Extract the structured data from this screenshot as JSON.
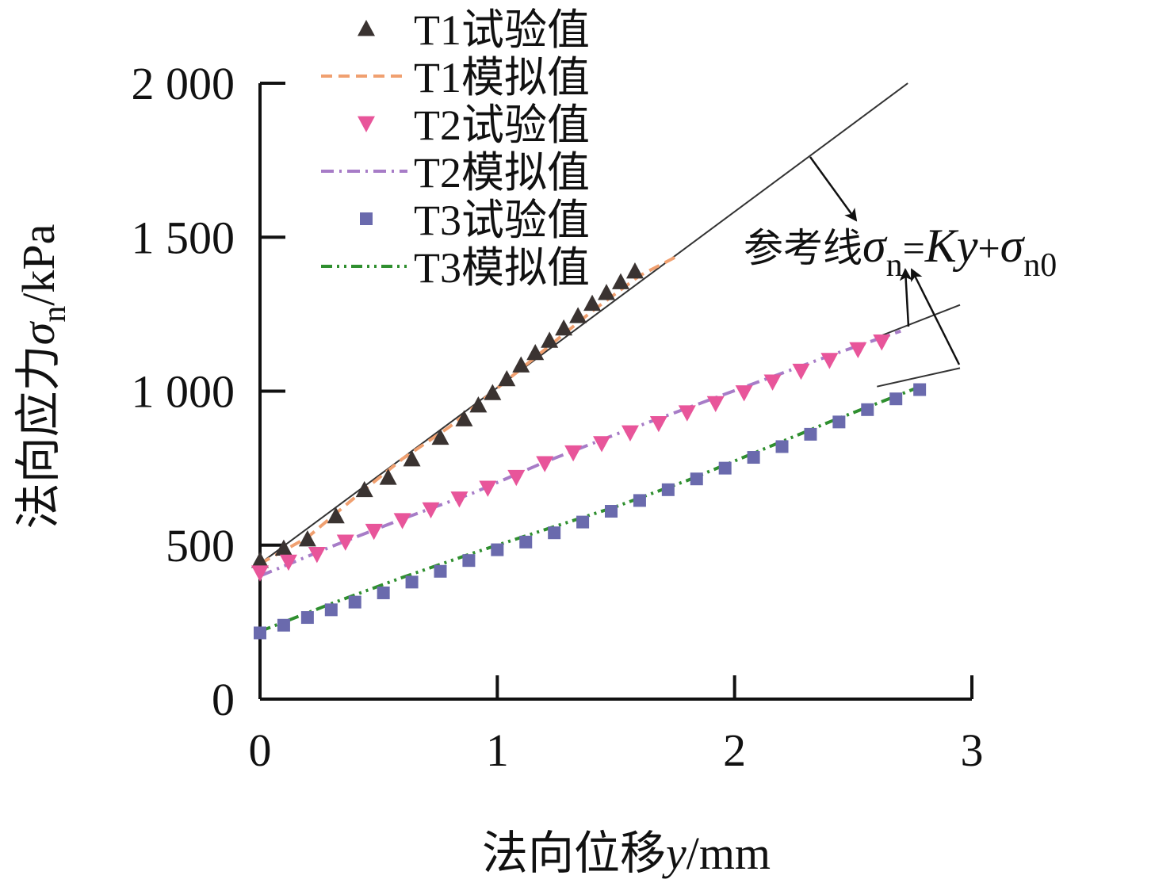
{
  "chart_data": {
    "type": "scatter",
    "title": "",
    "xlabel": {
      "prefix": "法向位移",
      "var": "y",
      "unit": "/mm"
    },
    "ylabel": {
      "prefix": "法向应力",
      "var": "σ",
      "sub": "n",
      "unit": "/kPa"
    },
    "xlim": [
      0,
      3
    ],
    "ylim": [
      0,
      2000
    ],
    "x_ticks": [
      0,
      1,
      2,
      3
    ],
    "x_tick_labels": [
      "0",
      "1",
      "2",
      "3"
    ],
    "y_ticks": [
      0,
      500,
      1000,
      1500,
      2000
    ],
    "y_tick_labels": [
      "0",
      "500",
      "1 000",
      "1 500",
      "2 000"
    ],
    "grid": false,
    "legend_position": "top-center",
    "legend": [
      {
        "label": "T1试验值",
        "marker": "triangle-up",
        "color": "#3a3331"
      },
      {
        "label": "T1模拟值",
        "line": "dashed",
        "color": "#f0a070"
      },
      {
        "label": "T2试验值",
        "marker": "triangle-down",
        "color": "#e8559a"
      },
      {
        "label": "T2模拟值",
        "line": "dashdot",
        "color": "#a77cc7"
      },
      {
        "label": "T3试验值",
        "marker": "square",
        "color": "#6a6aad"
      },
      {
        "label": "T3模拟值",
        "line": "dashdotdot",
        "color": "#2f8f2f"
      }
    ],
    "series": [
      {
        "name": "T1试验值",
        "kind": "markers",
        "marker": "triangle-up",
        "color": "#3a3331",
        "x": [
          0.0,
          0.1,
          0.2,
          0.32,
          0.44,
          0.54,
          0.64,
          0.76,
          0.86,
          0.92,
          0.98,
          1.04,
          1.1,
          1.16,
          1.22,
          1.28,
          1.34,
          1.4,
          1.46,
          1.52,
          1.58
        ],
        "y": [
          450,
          490,
          520,
          595,
          680,
          720,
          780,
          850,
          910,
          955,
          995,
          1040,
          1085,
          1125,
          1165,
          1205,
          1245,
          1285,
          1320,
          1355,
          1390
        ]
      },
      {
        "name": "T1模拟值",
        "kind": "line",
        "dash": "dashed",
        "color": "#f0a070",
        "x": [
          0.0,
          0.2,
          0.4,
          0.6,
          0.8,
          1.0,
          1.2,
          1.4,
          1.6,
          1.75
        ],
        "y": [
          440,
          525,
          655,
          780,
          885,
          1010,
          1135,
          1260,
          1375,
          1435
        ]
      },
      {
        "name": "T2试验值",
        "kind": "markers",
        "marker": "triangle-down",
        "color": "#e8559a",
        "x": [
          0.0,
          0.12,
          0.24,
          0.36,
          0.48,
          0.6,
          0.72,
          0.84,
          0.96,
          1.08,
          1.2,
          1.32,
          1.44,
          1.56,
          1.68,
          1.8,
          1.92,
          2.04,
          2.16,
          2.28,
          2.4,
          2.52,
          2.62
        ],
        "y": [
          410,
          445,
          470,
          510,
          545,
          580,
          615,
          650,
          685,
          720,
          765,
          800,
          830,
          865,
          895,
          930,
          960,
          995,
          1030,
          1065,
          1100,
          1135,
          1160
        ]
      },
      {
        "name": "T2模拟值",
        "kind": "line",
        "dash": "dashdot",
        "color": "#a77cc7",
        "x": [
          0.0,
          0.3,
          0.6,
          0.9,
          1.2,
          1.5,
          1.8,
          2.1,
          2.4,
          2.7
        ],
        "y": [
          400,
          495,
          585,
          670,
          770,
          860,
          945,
          1030,
          1115,
          1195
        ]
      },
      {
        "name": "T3试验值",
        "kind": "markers",
        "marker": "square",
        "color": "#6a6aad",
        "x": [
          0.0,
          0.1,
          0.2,
          0.3,
          0.4,
          0.52,
          0.64,
          0.76,
          0.88,
          1.0,
          1.12,
          1.24,
          1.36,
          1.48,
          1.6,
          1.72,
          1.84,
          1.96,
          2.08,
          2.2,
          2.32,
          2.44,
          2.56,
          2.68,
          2.78
        ],
        "y": [
          215,
          240,
          265,
          290,
          315,
          345,
          380,
          415,
          450,
          485,
          510,
          540,
          575,
          610,
          645,
          680,
          715,
          750,
          785,
          820,
          860,
          900,
          940,
          975,
          1005
        ]
      },
      {
        "name": "T3模拟值",
        "kind": "line",
        "dash": "dashdotdot",
        "color": "#2f8f2f",
        "x": [
          0.0,
          0.3,
          0.6,
          0.9,
          1.2,
          1.5,
          1.8,
          2.1,
          2.4,
          2.6,
          2.8
        ],
        "y": [
          220,
          310,
          395,
          475,
          550,
          625,
          710,
          805,
          900,
          960,
          1020
        ]
      },
      {
        "name": "参考线",
        "kind": "reference",
        "color": "#333333",
        "x": [
          0.0,
          2.73
        ],
        "y": [
          440,
          2000
        ]
      },
      {
        "name": "参考线",
        "kind": "reference",
        "color": "#333333",
        "x": [
          2.6,
          2.95
        ],
        "y": [
          1175,
          1280
        ]
      },
      {
        "name": "参考线",
        "kind": "reference",
        "color": "#333333",
        "x": [
          2.6,
          2.95
        ],
        "y": [
          1015,
          1075
        ]
      }
    ],
    "annotation": {
      "prefix": "参考线",
      "sigma": "σ",
      "sub_n": "n",
      "eq": "=",
      "K": "K",
      "y": "y",
      "plus": "+",
      "sub_n0": "n0"
    }
  }
}
